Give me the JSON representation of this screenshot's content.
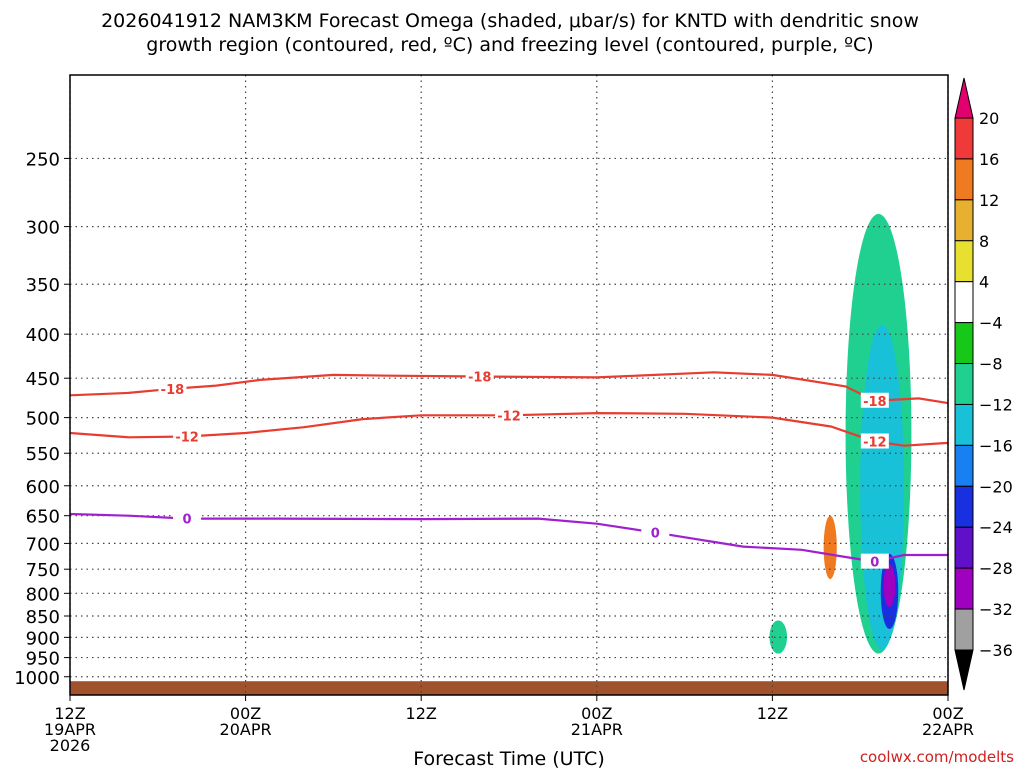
{
  "title_line1": "2026041912 NAM3KM Forecast Omega (shaded, μbar/s) for KNTD with dendritic snow",
  "title_line2": "growth region (contoured, red, ºC) and freezing level (contoured, purple, ºC)",
  "xlabel": "Forecast Time (UTC)",
  "credit": "coolwx.com/modelts",
  "colors": {
    "temp_contour": "#e83c30",
    "freezing_level": "#a020d0",
    "ground": "#a0522d",
    "grid": "#444444"
  },
  "chart_data": {
    "type": "heatmap",
    "title": "2026041912 NAM3KM Forecast Omega (shaded, μbar/s) for KNTD with dendritic snow growth region (contoured, red, ºC) and freezing level (contoured, purple, ºC)",
    "xlabel": "Forecast Time (UTC)",
    "ylabel": "",
    "x_range_hours": [
      0,
      60
    ],
    "y_range_hpa": [
      200,
      1050
    ],
    "y_scale": "log",
    "grid": true,
    "x_ticks": [
      {
        "hour": 0,
        "lines": [
          "12Z",
          "19APR",
          "2026"
        ]
      },
      {
        "hour": 12,
        "lines": [
          "00Z",
          "20APR"
        ]
      },
      {
        "hour": 24,
        "lines": [
          "12Z"
        ]
      },
      {
        "hour": 36,
        "lines": [
          "00Z",
          "21APR"
        ]
      },
      {
        "hour": 48,
        "lines": [
          "12Z"
        ]
      },
      {
        "hour": 60,
        "lines": [
          "00Z",
          "22APR"
        ]
      }
    ],
    "y_ticks": [
      250,
      300,
      350,
      400,
      450,
      500,
      550,
      600,
      650,
      700,
      750,
      800,
      850,
      900,
      950,
      1000
    ],
    "colorbar": {
      "labels": [
        "20",
        "16",
        "12",
        "8",
        "4",
        "−4",
        "−8",
        "−12",
        "−16",
        "−20",
        "−24",
        "−28",
        "−32",
        "−36"
      ],
      "colors": [
        "#e0006e",
        "#f03a3a",
        "#f07a20",
        "#e8b030",
        "#e8e030",
        "#ffffff",
        "#18c818",
        "#20d090",
        "#18c0d8",
        "#1880f0",
        "#1830e0",
        "#6010c8",
        "#a000c0",
        "#a0a0a0",
        "#000000"
      ]
    },
    "contours": [
      {
        "label": "-18",
        "color": "#e83c30",
        "points": [
          [
            0,
            471
          ],
          [
            4,
            468
          ],
          [
            7,
            463
          ],
          [
            10,
            459
          ],
          [
            13,
            452
          ],
          [
            18,
            446
          ],
          [
            22,
            447
          ],
          [
            28,
            448
          ],
          [
            36,
            449
          ],
          [
            44,
            443
          ],
          [
            48,
            446
          ],
          [
            53,
            460
          ],
          [
            55,
            478
          ],
          [
            58,
            475
          ],
          [
            60,
            481
          ]
        ]
      },
      {
        "label": "-12",
        "color": "#e83c30",
        "points": [
          [
            0,
            521
          ],
          [
            4,
            527
          ],
          [
            8,
            526
          ],
          [
            12,
            521
          ],
          [
            16,
            513
          ],
          [
            20,
            502
          ],
          [
            24,
            497
          ],
          [
            30,
            497
          ],
          [
            36,
            494
          ],
          [
            42,
            495
          ],
          [
            48,
            500
          ],
          [
            52,
            512
          ],
          [
            55,
            533
          ],
          [
            57,
            539
          ],
          [
            60,
            535
          ]
        ]
      },
      {
        "label": "0",
        "color": "#a020d0",
        "points": [
          [
            0,
            647
          ],
          [
            4,
            650
          ],
          [
            8,
            655
          ],
          [
            14,
            655
          ],
          [
            24,
            656
          ],
          [
            32,
            655
          ],
          [
            36,
            664
          ],
          [
            40,
            680
          ],
          [
            46,
            706
          ],
          [
            50,
            712
          ],
          [
            53,
            726
          ],
          [
            55,
            735
          ],
          [
            57,
            722
          ],
          [
            60,
            722
          ]
        ]
      }
    ],
    "omega_regions": [
      {
        "value": "-8",
        "pressure_top": 290,
        "pressure_bottom": 940,
        "hour_start": 53,
        "hour_end": 57.5
      },
      {
        "value": "-12",
        "pressure_top": 390,
        "pressure_bottom": 930,
        "hour_start": 54,
        "hour_end": 57
      },
      {
        "value": "-20",
        "pressure_top": 720,
        "pressure_bottom": 880,
        "hour_start": 55.4,
        "hour_end": 56.6
      },
      {
        "value": "-28",
        "pressure_top": 740,
        "pressure_bottom": 830,
        "hour_start": 55.6,
        "hour_end": 56.4
      },
      {
        "value": "16",
        "pressure_top": 650,
        "pressure_bottom": 770,
        "hour_start": 51.5,
        "hour_end": 52.4
      },
      {
        "value": "-8",
        "pressure_top": 860,
        "pressure_bottom": 940,
        "hour_start": 47.8,
        "hour_end": 49
      }
    ]
  }
}
